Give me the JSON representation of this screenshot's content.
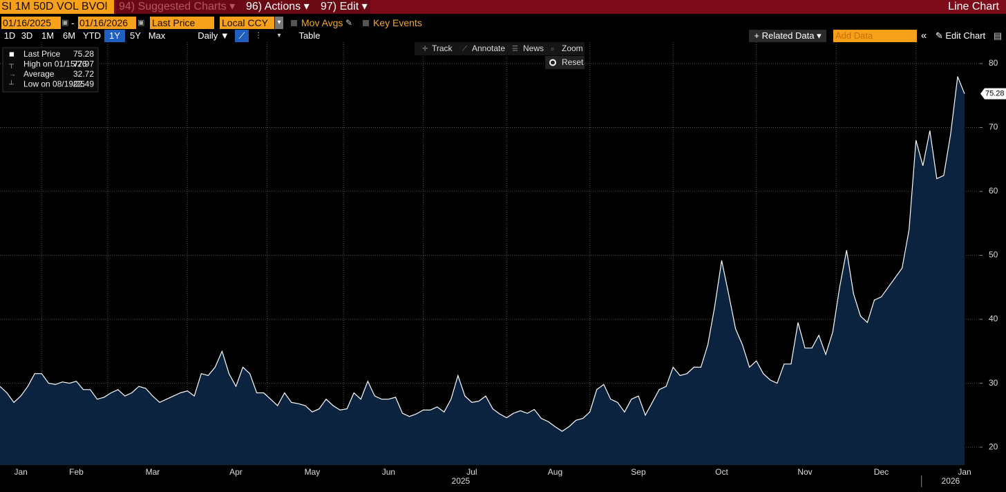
{
  "header": {
    "security": "SI 1M 50D VOL BVOl",
    "menus": [
      "94) Suggested Charts",
      "96) Actions",
      "97) Edit"
    ],
    "view": "Line Chart"
  },
  "controls": {
    "start_date": "01/16/2025",
    "separator": "-",
    "end_date": "01/16/2026",
    "field": "Last Price",
    "currency": "Local CCY",
    "mov_avgs": "Mov Avgs",
    "key_events": "Key Events",
    "periods": [
      "1D",
      "3D",
      "1M",
      "6M",
      "YTD",
      "1Y",
      "5Y",
      "Max"
    ],
    "selected_period": "1Y",
    "frequency": "Daily",
    "table": "Table",
    "related_data": "Related Data",
    "add_data": "Add Data",
    "edit_chart": "Edit Chart"
  },
  "chart_tools": {
    "tools": [
      "Track",
      "Annotate",
      "News",
      "Zoom"
    ],
    "reset": "Reset"
  },
  "chart_data": {
    "type": "area",
    "stats": [
      {
        "label": "Last Price",
        "value": 75.28
      },
      {
        "label": "High on 01/15/26",
        "value": 77.97
      },
      {
        "label": "Average",
        "value": 32.72
      },
      {
        "label": "Low on 08/19/25",
        "value": 22.49
      }
    ],
    "categories": [
      null,
      null,
      null,
      "Jan",
      null,
      null,
      null,
      null,
      null,
      null,
      null,
      "Feb",
      null,
      null,
      null,
      null,
      null,
      null,
      null,
      null,
      null,
      null,
      "Mar",
      null,
      null,
      null,
      null,
      null,
      null,
      null,
      null,
      null,
      null,
      null,
      "Apr",
      null,
      null,
      null,
      null,
      null,
      null,
      null,
      null,
      null,
      null,
      "May",
      null,
      null,
      null,
      null,
      null,
      null,
      null,
      null,
      null,
      null,
      "Jun",
      null,
      null,
      null,
      null,
      null,
      null,
      null,
      null,
      null,
      null,
      null,
      "Jul",
      null,
      null,
      null,
      null,
      null,
      null,
      null,
      null,
      null,
      null,
      null,
      "Aug",
      null,
      null,
      null,
      null,
      null,
      null,
      null,
      null,
      null,
      null,
      null,
      "Sep",
      null,
      null,
      null,
      null,
      null,
      null,
      null,
      null,
      null,
      null,
      null,
      "Oct",
      null,
      null,
      null,
      null,
      null,
      null,
      null,
      null,
      null,
      null,
      null,
      "Nov",
      null,
      null,
      null,
      null,
      null,
      null,
      null,
      null,
      null,
      null,
      "Dec",
      null,
      null,
      null,
      null,
      null,
      null,
      null,
      null,
      null,
      null,
      null,
      "Jan"
    ],
    "year_labels": [
      "2025",
      "2026"
    ],
    "series": [
      {
        "name": "Last Price",
        "color": "#ffffff",
        "fill": "#0c2340",
        "values": [
          29.5,
          28.5,
          27,
          28,
          29.5,
          31.5,
          31.5,
          30,
          29.8,
          30.2,
          30,
          30.3,
          29,
          29,
          27.5,
          27.8,
          28.5,
          29,
          28,
          28.5,
          29.5,
          29.2,
          28,
          27,
          27.5,
          28,
          28.5,
          28.8,
          28,
          31.5,
          31.2,
          32.5,
          35,
          31.5,
          29.5,
          32.5,
          31.5,
          28.5,
          28.5,
          27.5,
          26.5,
          28.5,
          27,
          26.8,
          26.5,
          25.5,
          26,
          27.5,
          26.5,
          25.8,
          26,
          28.5,
          27.5,
          30.3,
          28,
          27.5,
          27.5,
          27.8,
          25.3,
          24.8,
          25.2,
          25.8,
          25.8,
          26.3,
          25.5,
          27.5,
          31.2,
          28,
          27,
          27.2,
          28,
          26,
          25.2,
          24.6,
          25.3,
          25.7,
          25.3,
          25.9,
          24.5,
          24,
          23.2,
          22.49,
          23.2,
          24.2,
          24.5,
          25.5,
          29,
          29.8,
          27.5,
          27,
          25.5,
          27.5,
          28,
          25,
          27,
          29,
          29.5,
          32.5,
          31.2,
          31.5,
          32.5,
          32.5,
          36,
          42,
          49.2,
          44,
          38.5,
          36,
          32.5,
          33.5,
          31.5,
          30.5,
          30,
          33,
          33,
          39.5,
          35.5,
          35.5,
          37.5,
          34.5,
          38,
          45,
          50.8,
          44,
          40.5,
          39.5,
          43,
          43.5,
          45,
          46.5,
          48,
          54,
          68,
          64,
          69.5,
          62,
          62.5,
          69,
          77.97,
          75.28
        ]
      }
    ],
    "ylim": [
      17.2,
      83.35
    ],
    "yticks": [
      20,
      30,
      40,
      50,
      60,
      70,
      80
    ],
    "grid": true
  }
}
